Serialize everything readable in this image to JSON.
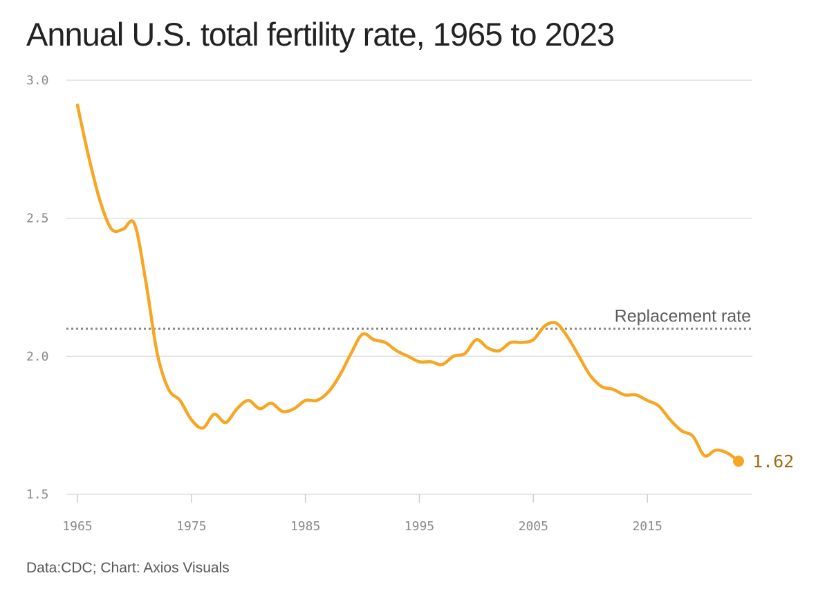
{
  "title": "Annual U.S. total fertility rate, 1965 to 2023",
  "source": "Data:CDC; Chart: Axios Visuals",
  "colors": {
    "line": "#F6A623",
    "end_label": "#A36A10",
    "grid": "#DEDEDE",
    "reference": "#888888"
  },
  "chart_data": {
    "type": "line",
    "title": "Annual U.S. total fertility rate, 1965 to 2023",
    "xlabel": "",
    "ylabel": "",
    "xlim": [
      1965,
      2023
    ],
    "ylim": [
      1.5,
      3.0
    ],
    "y_ticks": [
      {
        "value": 3.0,
        "label": "3.0"
      },
      {
        "value": 2.5,
        "label": "2.5"
      },
      {
        "value": 2.0,
        "label": "2.0"
      },
      {
        "value": 1.5,
        "label": "1.5"
      }
    ],
    "x_ticks": [
      {
        "value": 1965,
        "label": "1965"
      },
      {
        "value": 1975,
        "label": "1975"
      },
      {
        "value": 1985,
        "label": "1985"
      },
      {
        "value": 1995,
        "label": "1995"
      },
      {
        "value": 2005,
        "label": "2005"
      },
      {
        "value": 2015,
        "label": "2015"
      }
    ],
    "grid": true,
    "reference_line": {
      "value": 2.1,
      "label": "Replacement rate"
    },
    "end_label": "1.62",
    "x": [
      1965,
      1966,
      1967,
      1968,
      1969,
      1970,
      1971,
      1972,
      1973,
      1974,
      1975,
      1976,
      1977,
      1978,
      1979,
      1980,
      1981,
      1982,
      1983,
      1984,
      1985,
      1986,
      1987,
      1988,
      1989,
      1990,
      1991,
      1992,
      1993,
      1994,
      1995,
      1996,
      1997,
      1998,
      1999,
      2000,
      2001,
      2002,
      2003,
      2004,
      2005,
      2006,
      2007,
      2008,
      2009,
      2010,
      2011,
      2012,
      2013,
      2014,
      2015,
      2016,
      2017,
      2018,
      2019,
      2020,
      2021,
      2022,
      2023
    ],
    "values": [
      2.91,
      2.72,
      2.56,
      2.46,
      2.46,
      2.48,
      2.27,
      2.01,
      1.88,
      1.84,
      1.77,
      1.74,
      1.79,
      1.76,
      1.81,
      1.84,
      1.81,
      1.83,
      1.8,
      1.81,
      1.84,
      1.84,
      1.87,
      1.93,
      2.01,
      2.08,
      2.06,
      2.05,
      2.02,
      2.0,
      1.98,
      1.98,
      1.97,
      2.0,
      2.01,
      2.06,
      2.03,
      2.02,
      2.05,
      2.05,
      2.06,
      2.11,
      2.12,
      2.07,
      2.0,
      1.93,
      1.89,
      1.88,
      1.86,
      1.86,
      1.84,
      1.82,
      1.77,
      1.73,
      1.71,
      1.64,
      1.66,
      1.65,
      1.62
    ]
  }
}
